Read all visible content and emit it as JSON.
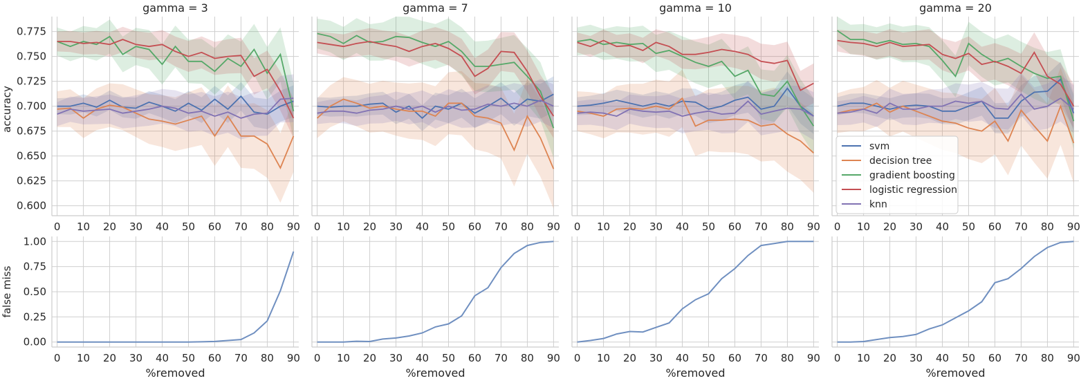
{
  "chart_data": {
    "type": "line",
    "facet_titles": [
      "gamma = 3",
      "gamma = 7",
      "gamma = 10",
      "gamma = 20"
    ],
    "x": [
      0,
      5,
      10,
      15,
      20,
      25,
      30,
      35,
      40,
      45,
      50,
      55,
      60,
      65,
      70,
      75,
      80,
      85,
      90
    ],
    "xlabel": "%removed",
    "x_ticks": [
      0,
      10,
      20,
      30,
      40,
      50,
      60,
      70,
      80,
      90
    ],
    "top_row": {
      "ylabel": "accuracy",
      "ylim": [
        0.59,
        0.79
      ],
      "y_ticks": [
        "0.600",
        "0.625",
        "0.650",
        "0.675",
        "0.700",
        "0.725",
        "0.750",
        "0.775"
      ],
      "legend_placement": "inside lower-left of the gamma = 20 panel",
      "series_styles": [
        {
          "name": "svm",
          "color": "#4c72b0"
        },
        {
          "name": "decision tree",
          "color": "#dd8452"
        },
        {
          "name": "gradient boosting",
          "color": "#55a868"
        },
        {
          "name": "logistic regression",
          "color": "#c44e52"
        },
        {
          "name": "knn",
          "color": "#8172b3"
        }
      ],
      "panels": [
        {
          "series": [
            {
              "name": "svm",
              "values": [
                0.7,
                0.7,
                0.703,
                0.699,
                0.706,
                0.699,
                0.698,
                0.704,
                0.7,
                0.695,
                0.703,
                0.696,
                0.707,
                0.697,
                0.71,
                0.694,
                0.692,
                0.7,
                0.705
              ],
              "ci": 0.008
            },
            {
              "name": "decision tree",
              "values": [
                0.697,
                0.698,
                0.688,
                0.697,
                0.701,
                0.699,
                0.693,
                0.687,
                0.685,
                0.682,
                0.686,
                0.69,
                0.67,
                0.69,
                0.67,
                0.67,
                0.662,
                0.638,
                0.67
              ],
              "ci": 0.018
            },
            {
              "name": "gradient boosting",
              "values": [
                0.765,
                0.76,
                0.765,
                0.762,
                0.77,
                0.752,
                0.76,
                0.757,
                0.742,
                0.76,
                0.745,
                0.745,
                0.735,
                0.748,
                0.74,
                0.757,
                0.733,
                0.752,
                0.695
              ],
              "ci": 0.014
            },
            {
              "name": "logistic regression",
              "values": [
                0.765,
                0.765,
                0.763,
                0.764,
                0.762,
                0.767,
                0.762,
                0.76,
                0.762,
                0.755,
                0.75,
                0.754,
                0.748,
                0.75,
                0.751,
                0.73,
                0.737,
                0.715,
                0.688
              ],
              "ci": 0.01
            },
            {
              "name": "knn",
              "values": [
                0.692,
                0.697,
                0.695,
                0.696,
                0.697,
                0.693,
                0.695,
                0.697,
                0.7,
                0.698,
                0.693,
                0.695,
                0.69,
                0.694,
                0.688,
                0.692,
                0.693,
                0.707,
                0.708
              ],
              "ci": 0.012
            }
          ]
        },
        {
          "series": [
            {
              "name": "svm",
              "values": [
                0.7,
                0.699,
                0.7,
                0.7,
                0.702,
                0.703,
                0.694,
                0.7,
                0.688,
                0.7,
                0.697,
                0.703,
                0.693,
                0.7,
                0.708,
                0.697,
                0.707,
                0.705,
                0.712
              ],
              "ci": 0.009
            },
            {
              "name": "decision tree",
              "values": [
                0.688,
                0.7,
                0.707,
                0.703,
                0.698,
                0.7,
                0.697,
                0.695,
                0.695,
                0.69,
                0.703,
                0.703,
                0.69,
                0.688,
                0.683,
                0.656,
                0.69,
                0.668,
                0.637
              ],
              "ci": 0.02
            },
            {
              "name": "gradient boosting",
              "values": [
                0.773,
                0.77,
                0.763,
                0.771,
                0.764,
                0.765,
                0.77,
                0.769,
                0.764,
                0.76,
                0.765,
                0.755,
                0.74,
                0.74,
                0.742,
                0.744,
                0.73,
                0.715,
                0.678
              ],
              "ci": 0.015
            },
            {
              "name": "logistic regression",
              "values": [
                0.764,
                0.762,
                0.76,
                0.763,
                0.765,
                0.762,
                0.76,
                0.755,
                0.76,
                0.763,
                0.758,
                0.75,
                0.73,
                0.738,
                0.755,
                0.754,
                0.735,
                0.71,
                0.69
              ],
              "ci": 0.011
            },
            {
              "name": "knn",
              "values": [
                0.693,
                0.695,
                0.695,
                0.693,
                0.696,
                0.697,
                0.7,
                0.697,
                0.7,
                0.694,
                0.7,
                0.696,
                0.697,
                0.702,
                0.7,
                0.703,
                0.7,
                0.706,
                0.7
              ],
              "ci": 0.011
            }
          ]
        },
        {
          "series": [
            {
              "name": "svm",
              "values": [
                0.7,
                0.701,
                0.703,
                0.706,
                0.703,
                0.7,
                0.703,
                0.7,
                0.705,
                0.704,
                0.697,
                0.7,
                0.706,
                0.709,
                0.697,
                0.7,
                0.718,
                0.7,
                0.69
              ],
              "ci": 0.009
            },
            {
              "name": "decision tree",
              "values": [
                0.695,
                0.693,
                0.69,
                0.697,
                0.698,
                0.697,
                0.7,
                0.697,
                0.708,
                0.68,
                0.686,
                0.686,
                0.687,
                0.686,
                0.68,
                0.682,
                0.672,
                0.665,
                0.653
              ],
              "ci": 0.02
            },
            {
              "name": "gradient boosting",
              "values": [
                0.765,
                0.767,
                0.762,
                0.764,
                0.762,
                0.763,
                0.753,
                0.756,
                0.75,
                0.744,
                0.74,
                0.745,
                0.73,
                0.736,
                0.712,
                0.71,
                0.725,
                0.7,
                0.68
              ],
              "ci": 0.014
            },
            {
              "name": "logistic regression",
              "values": [
                0.764,
                0.76,
                0.766,
                0.76,
                0.761,
                0.756,
                0.764,
                0.76,
                0.752,
                0.752,
                0.754,
                0.757,
                0.755,
                0.752,
                0.745,
                0.743,
                0.746,
                0.716,
                0.723
              ],
              "ci": 0.01
            },
            {
              "name": "knn",
              "values": [
                0.693,
                0.694,
                0.693,
                0.69,
                0.697,
                0.695,
                0.694,
                0.695,
                0.69,
                0.693,
                0.695,
                0.692,
                0.693,
                0.705,
                0.692,
                0.695,
                0.698,
                0.697,
                0.69
              ],
              "ci": 0.012
            }
          ]
        },
        {
          "series": [
            {
              "name": "svm",
              "values": [
                0.7,
                0.703,
                0.703,
                0.7,
                0.697,
                0.7,
                0.701,
                0.7,
                0.695,
                0.695,
                0.7,
                0.705,
                0.688,
                0.688,
                0.705,
                0.714,
                0.715,
                0.727,
                0.693
              ],
              "ci": 0.009
            },
            {
              "name": "decision tree",
              "values": [
                0.693,
                0.696,
                0.697,
                0.703,
                0.694,
                0.7,
                0.695,
                0.69,
                0.685,
                0.683,
                0.678,
                0.675,
                0.685,
                0.665,
                0.696,
                0.68,
                0.665,
                0.7,
                0.663
              ],
              "ci": 0.02
            },
            {
              "name": "gradient boosting",
              "values": [
                0.776,
                0.767,
                0.767,
                0.763,
                0.766,
                0.762,
                0.763,
                0.76,
                0.746,
                0.73,
                0.763,
                0.752,
                0.744,
                0.748,
                0.74,
                0.733,
                0.728,
                0.73,
                0.685
              ],
              "ci": 0.014
            },
            {
              "name": "logistic regression",
              "values": [
                0.766,
                0.764,
                0.763,
                0.76,
                0.764,
                0.76,
                0.761,
                0.762,
                0.752,
                0.748,
                0.753,
                0.742,
                0.745,
                0.74,
                0.733,
                0.754,
                0.73,
                0.722,
                0.7
              ],
              "ci": 0.011
            },
            {
              "name": "knn",
              "values": [
                0.693,
                0.694,
                0.697,
                0.693,
                0.703,
                0.697,
                0.697,
                0.7,
                0.7,
                0.705,
                0.703,
                0.705,
                0.698,
                0.697,
                0.712,
                0.697,
                0.7,
                0.708,
                0.697
              ],
              "ci": 0.012
            }
          ]
        }
      ]
    },
    "bottom_row": {
      "ylabel": "false miss",
      "ylim": [
        -0.05,
        1.05
      ],
      "y_ticks": [
        "0.00",
        "0.25",
        "0.50",
        "0.75",
        "1.00"
      ],
      "color": "#6f8fc0",
      "panels": [
        {
          "values": [
            0,
            0,
            0,
            0,
            0,
            0,
            0,
            0,
            0,
            0,
            0,
            0.002,
            0.006,
            0.015,
            0.025,
            0.09,
            0.21,
            0.51,
            0.9
          ]
        },
        {
          "values": [
            0,
            0,
            0,
            0.008,
            0.005,
            0.03,
            0.04,
            0.06,
            0.09,
            0.15,
            0.18,
            0.26,
            0.46,
            0.54,
            0.74,
            0.88,
            0.96,
            0.99,
            1.0
          ]
        },
        {
          "values": [
            0,
            0.015,
            0.035,
            0.08,
            0.105,
            0.1,
            0.145,
            0.19,
            0.33,
            0.42,
            0.48,
            0.63,
            0.73,
            0.86,
            0.96,
            0.98,
            1.0,
            1.0,
            1.0
          ]
        },
        {
          "values": [
            0,
            0,
            0.005,
            0.025,
            0.045,
            0.055,
            0.075,
            0.13,
            0.17,
            0.24,
            0.31,
            0.4,
            0.59,
            0.63,
            0.73,
            0.85,
            0.94,
            0.99,
            1.0
          ]
        }
      ]
    }
  }
}
